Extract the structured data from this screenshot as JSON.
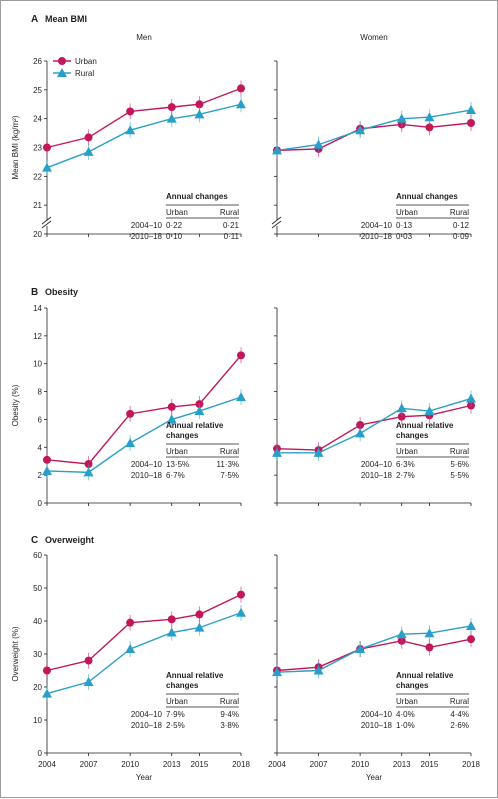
{
  "chart_data": [
    {
      "type": "line",
      "panel_letter": "A",
      "title": "Mean BMI",
      "ylabel": "Mean BMI (kg/m²)",
      "ylim": [
        20,
        26
      ],
      "yticks": [
        20,
        21,
        22,
        23,
        24,
        25,
        26
      ],
      "axis_break": true,
      "x": [
        2004,
        2007,
        2010,
        2013,
        2015,
        2018
      ],
      "subplots": [
        {
          "title": "Men",
          "series": [
            {
              "name": "Urban",
              "color": "#c2185b",
              "marker": "circle",
              "values": [
                23.0,
                23.35,
                24.25,
                24.4,
                24.5,
                25.05
              ]
            },
            {
              "name": "Rural",
              "color": "#2aa0c8",
              "marker": "triangle",
              "values": [
                22.3,
                22.85,
                23.6,
                24.0,
                24.15,
                24.5
              ]
            }
          ],
          "table": {
            "title": "Annual changes",
            "cols": [
              "Urban",
              "Rural"
            ],
            "rows": [
              {
                "label": "2004–10",
                "cells": [
                  "0·22",
                  "0·21"
                ]
              },
              {
                "label": "2010–18",
                "cells": [
                  "0·10",
                  "0·11"
                ]
              }
            ]
          }
        },
        {
          "title": "Women",
          "series": [
            {
              "name": "Urban",
              "color": "#c2185b",
              "marker": "circle",
              "values": [
                22.9,
                22.95,
                23.65,
                23.8,
                23.7,
                23.85
              ]
            },
            {
              "name": "Rural",
              "color": "#2aa0c8",
              "marker": "triangle",
              "values": [
                22.9,
                23.1,
                23.6,
                24.0,
                24.05,
                24.3
              ]
            }
          ],
          "table": {
            "title": "Annual changes",
            "cols": [
              "Urban",
              "Rural"
            ],
            "rows": [
              {
                "label": "2004–10",
                "cells": [
                  "0·13",
                  "0·12"
                ]
              },
              {
                "label": "2010–18",
                "cells": [
                  "0·03",
                  "0·09"
                ]
              }
            ]
          }
        }
      ]
    },
    {
      "type": "line",
      "panel_letter": "B",
      "title": "Obesity",
      "ylabel": "Obesity (%)",
      "ylim": [
        0,
        14
      ],
      "yticks": [
        0,
        2,
        4,
        6,
        8,
        10,
        12,
        14
      ],
      "axis_break": false,
      "x": [
        2004,
        2007,
        2010,
        2013,
        2015,
        2018
      ],
      "subplots": [
        {
          "title": "",
          "series": [
            {
              "name": "Urban",
              "color": "#c2185b",
              "marker": "circle",
              "values": [
                3.1,
                2.8,
                6.4,
                6.9,
                7.1,
                10.6
              ]
            },
            {
              "name": "Rural",
              "color": "#2aa0c8",
              "marker": "triangle",
              "values": [
                2.3,
                2.2,
                4.3,
                6.0,
                6.6,
                7.6
              ]
            }
          ],
          "table": {
            "title": "Annual relative changes",
            "cols": [
              "Urban",
              "Rural"
            ],
            "rows": [
              {
                "label": "2004–10",
                "cells": [
                  "13·5%",
                  "11·3%"
                ]
              },
              {
                "label": "2010–18",
                "cells": [
                  "6·7%",
                  "7·5%"
                ]
              }
            ]
          }
        },
        {
          "title": "",
          "series": [
            {
              "name": "Urban",
              "color": "#c2185b",
              "marker": "circle",
              "values": [
                3.9,
                3.8,
                5.6,
                6.2,
                6.3,
                7.0
              ]
            },
            {
              "name": "Rural",
              "color": "#2aa0c8",
              "marker": "triangle",
              "values": [
                3.6,
                3.6,
                5.0,
                6.8,
                6.6,
                7.5
              ]
            }
          ],
          "table": {
            "title": "Annual relative changes",
            "cols": [
              "Urban",
              "Rural"
            ],
            "rows": [
              {
                "label": "2004–10",
                "cells": [
                  "6·3%",
                  "5·6%"
                ]
              },
              {
                "label": "2010–18",
                "cells": [
                  "2·7%",
                  "5·5%"
                ]
              }
            ]
          }
        }
      ]
    },
    {
      "type": "line",
      "panel_letter": "C",
      "title": "Overweight",
      "ylabel": "Overweight (%)",
      "xlabel": "Year",
      "ylim": [
        0,
        60
      ],
      "yticks": [
        0,
        10,
        20,
        30,
        40,
        50,
        60
      ],
      "axis_break": false,
      "x": [
        2004,
        2007,
        2010,
        2013,
        2015,
        2018
      ],
      "xtick_labels": [
        "2004",
        "2007",
        "2010",
        "2013",
        "2015",
        "2018"
      ],
      "subplots": [
        {
          "title": "",
          "series": [
            {
              "name": "Urban",
              "color": "#c2185b",
              "marker": "circle",
              "values": [
                25.0,
                28.0,
                39.5,
                40.5,
                42.0,
                48.0
              ]
            },
            {
              "name": "Rural",
              "color": "#2aa0c8",
              "marker": "triangle",
              "values": [
                18.0,
                21.5,
                31.5,
                36.5,
                38.0,
                42.5
              ]
            }
          ],
          "table": {
            "title": "Annual relative changes",
            "cols": [
              "Urban",
              "Rural"
            ],
            "rows": [
              {
                "label": "2004–10",
                "cells": [
                  "7·9%",
                  "9·4%"
                ]
              },
              {
                "label": "2010–18",
                "cells": [
                  "2·5%",
                  "3·8%"
                ]
              }
            ]
          }
        },
        {
          "title": "",
          "series": [
            {
              "name": "Urban",
              "color": "#c2185b",
              "marker": "circle",
              "values": [
                25.0,
                26.0,
                31.5,
                34.0,
                32.0,
                34.5
              ]
            },
            {
              "name": "Rural",
              "color": "#2aa0c8",
              "marker": "triangle",
              "values": [
                24.5,
                25.0,
                31.5,
                36.0,
                36.3,
                38.5
              ]
            }
          ],
          "table": {
            "title": "Annual relative changes",
            "cols": [
              "Urban",
              "Rural"
            ],
            "rows": [
              {
                "label": "2004–10",
                "cells": [
                  "4·0%",
                  "4·4%"
                ]
              },
              {
                "label": "2010–18",
                "cells": [
                  "1·0%",
                  "2·6%"
                ]
              }
            ]
          }
        }
      ]
    }
  ],
  "legend": [
    {
      "name": "Urban",
      "color": "#c2185b",
      "marker": "circle"
    },
    {
      "name": "Rural",
      "color": "#2aa0c8",
      "marker": "triangle"
    }
  ]
}
